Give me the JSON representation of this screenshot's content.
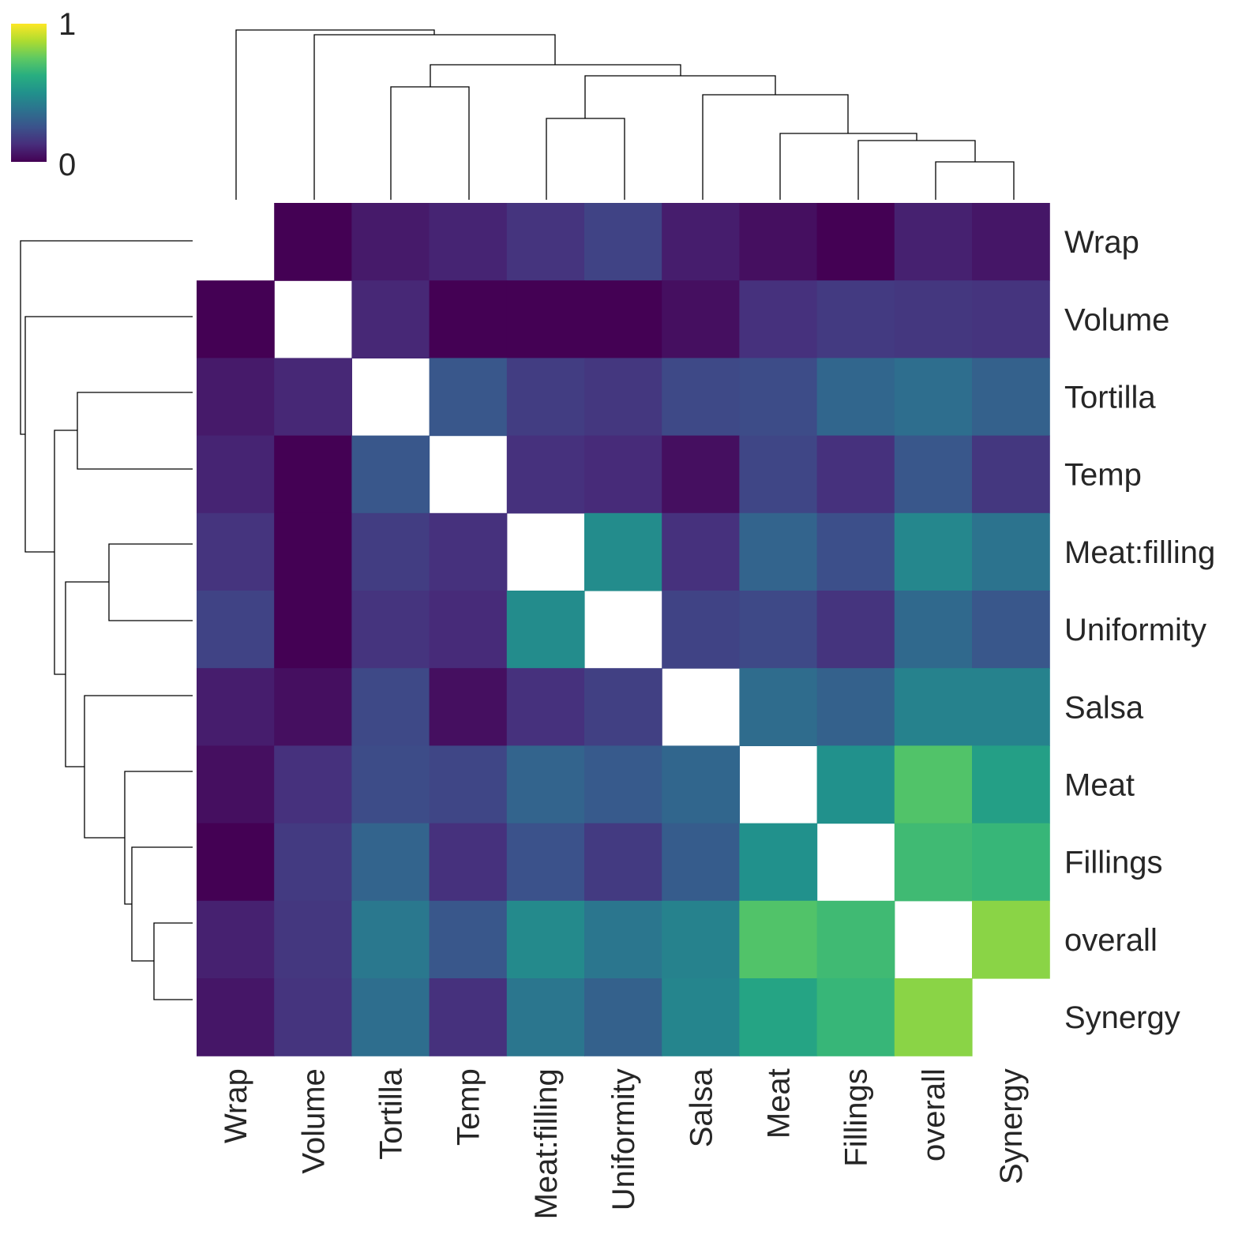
{
  "chart_data": {
    "type": "heatmap",
    "title": "",
    "xlabel": "",
    "ylabel": "",
    "rows": [
      "Wrap",
      "Volume",
      "Tortilla",
      "Temp",
      "Meat:filling",
      "Uniformity",
      "Salsa",
      "Meat",
      "Fillings",
      "overall",
      "Synergy"
    ],
    "columns": [
      "Wrap",
      "Volume",
      "Tortilla",
      "Temp",
      "Meat:filling",
      "Uniformity",
      "Salsa",
      "Meat",
      "Fillings",
      "overall",
      "Synergy"
    ],
    "values": [
      [
        null,
        0.0,
        0.07,
        0.1,
        0.15,
        0.2,
        0.08,
        0.04,
        0.0,
        0.09,
        0.06
      ],
      [
        0.0,
        null,
        0.11,
        0.0,
        0.0,
        0.0,
        0.04,
        0.14,
        0.17,
        0.16,
        0.15
      ],
      [
        0.07,
        0.11,
        null,
        0.27,
        0.18,
        0.16,
        0.22,
        0.23,
        0.33,
        0.36,
        0.31
      ],
      [
        0.1,
        0.0,
        0.27,
        null,
        0.14,
        0.12,
        0.04,
        0.21,
        0.14,
        0.27,
        0.16
      ],
      [
        0.15,
        0.0,
        0.18,
        0.14,
        null,
        0.48,
        0.14,
        0.32,
        0.24,
        0.46,
        0.38
      ],
      [
        0.2,
        0.0,
        0.15,
        0.12,
        0.48,
        null,
        0.2,
        0.22,
        0.15,
        0.34,
        0.27
      ],
      [
        0.08,
        0.04,
        0.22,
        0.04,
        0.14,
        0.19,
        null,
        0.35,
        0.31,
        0.44,
        0.44
      ],
      [
        0.04,
        0.14,
        0.23,
        0.21,
        0.32,
        0.28,
        0.33,
        null,
        0.5,
        0.72,
        0.56
      ],
      [
        0.0,
        0.17,
        0.32,
        0.14,
        0.25,
        0.17,
        0.29,
        0.5,
        null,
        0.68,
        0.66
      ],
      [
        0.09,
        0.16,
        0.4,
        0.27,
        0.47,
        0.39,
        0.44,
        0.72,
        0.68,
        null,
        0.82
      ],
      [
        0.06,
        0.15,
        0.36,
        0.14,
        0.39,
        0.31,
        0.45,
        0.58,
        0.66,
        0.82,
        null
      ]
    ],
    "colormap": "viridis",
    "colorbar": {
      "min": 0,
      "max": 1,
      "tick_labels": [
        "1",
        "0"
      ],
      "position": "top-left"
    },
    "dendrograms": {
      "row": "left",
      "column": "top"
    },
    "grid": false
  }
}
